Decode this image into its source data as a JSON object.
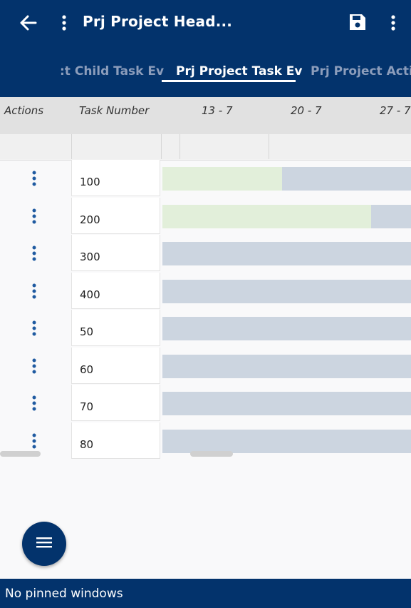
{
  "header": {
    "title": "Prj Project Head...",
    "back_icon": "arrow-left-icon",
    "menu_icon": "more-vertical-icon",
    "save_icon": "floppy-disk-icon",
    "overflow_icon": "more-vertical-icon"
  },
  "tabs": [
    {
      "label": ":t Child Task Ev",
      "active": false
    },
    {
      "label": "Prj Project Task Ev",
      "active": true
    },
    {
      "label": "Prj Project Activ",
      "active": false
    }
  ],
  "columns": {
    "actions": "Actions",
    "task_number": "Task Number",
    "weeks": [
      "13 - 7",
      "20 - 7",
      "27 - 7"
    ]
  },
  "rows": [
    {
      "task_number": "100",
      "progress": 0.48
    },
    {
      "task_number": "200",
      "progress": 0.84
    },
    {
      "task_number": "300",
      "progress": 0
    },
    {
      "task_number": "400",
      "progress": 0
    },
    {
      "task_number": "50",
      "progress": 0
    },
    {
      "task_number": "60",
      "progress": 0
    },
    {
      "task_number": "70",
      "progress": 0
    },
    {
      "task_number": "80",
      "progress": 0
    }
  ],
  "fab_icon": "hamburger-menu-icon",
  "footer": {
    "text": "No pinned windows"
  },
  "colors": {
    "primary": "#03336c",
    "bar_bg": "#ccd5e0",
    "bar_progress": "#e2efda",
    "action_dots": "#1f5aa0"
  }
}
